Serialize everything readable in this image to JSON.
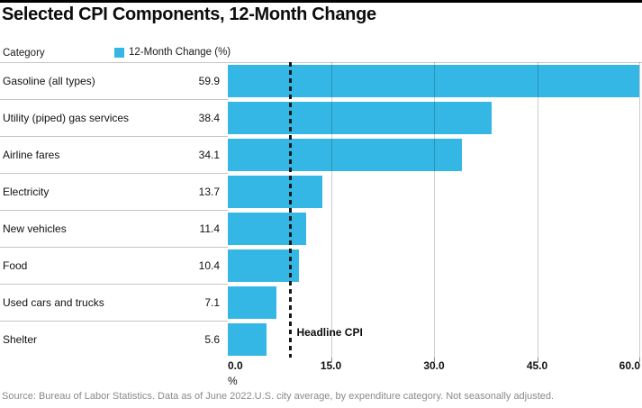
{
  "title": "Selected CPI Components, 12-Month Change",
  "header": {
    "category_label": "Category",
    "legend_label": "12-Month Change (%)"
  },
  "chart_data": {
    "type": "bar",
    "orientation": "horizontal",
    "title": "Selected CPI Components, 12-Month Change",
    "categories": [
      "Gasoline (all types)",
      "Utility (piped) gas services",
      "Airline fares",
      "Electricity",
      "New vehicles",
      "Food",
      "Used cars and trucks",
      "Shelter"
    ],
    "values": [
      59.9,
      38.4,
      34.1,
      13.7,
      11.4,
      10.4,
      7.1,
      5.6
    ],
    "series_label": "12-Month Change (%)",
    "xlabel": "%",
    "xlim": [
      0,
      60
    ],
    "xticks": [
      0,
      15,
      30,
      45,
      60
    ],
    "xtick_labels": [
      "0.0",
      "15.0",
      "30.0",
      "45.0",
      "60.0"
    ],
    "grid": true,
    "reference_line": {
      "label": "Headline CPI",
      "value": 9.1,
      "style": "dashed"
    }
  },
  "colors": {
    "bar": "#35b7e5",
    "reference_line": "#15191c",
    "divider": "#c6c6c6",
    "tick": "#8a8a8a",
    "source_text": "#8a8a8a",
    "top_border": "#000000"
  },
  "source": "Source: Bureau of Labor Statistics. Data as of June 2022.U.S. city average, by expenditure category. Not seasonally adjusted."
}
